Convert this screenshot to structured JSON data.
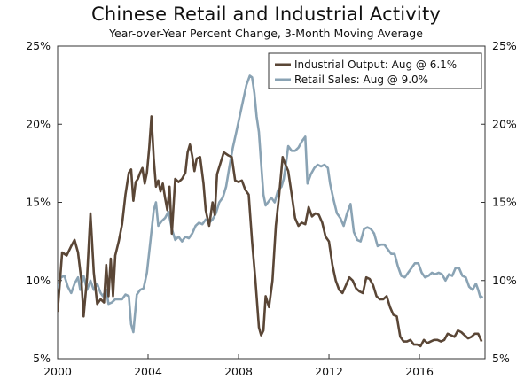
{
  "chart_data": {
    "type": "line",
    "title": "Chinese Retail and Industrial Activity",
    "subtitle": "Year-over-Year Percent Change, 3-Month Moving Average",
    "xlabel": "",
    "ylabel": "",
    "xlim": [
      2000.0,
      2018.9
    ],
    "ylim": [
      5,
      25
    ],
    "x_ticks": [
      "2000",
      "2004",
      "2008",
      "2012",
      "2016"
    ],
    "x_tick_values": [
      2000,
      2004,
      2008,
      2012,
      2016
    ],
    "y_ticks": [
      "5%",
      "10%",
      "15%",
      "20%",
      "25%"
    ],
    "y_tick_values": [
      5,
      10,
      15,
      20,
      25
    ],
    "y_axis_both_sides": true,
    "grid": false,
    "legend_position": "top-right",
    "series": [
      {
        "name": "Industrial Output: Aug @ 6.1%",
        "color": "#5a4636",
        "points": [
          [
            2000.0,
            8.0
          ],
          [
            2000.2,
            11.8
          ],
          [
            2000.4,
            11.6
          ],
          [
            2000.6,
            12.2
          ],
          [
            2000.75,
            12.6
          ],
          [
            2000.9,
            11.8
          ],
          [
            2001.05,
            10.0
          ],
          [
            2001.15,
            7.7
          ],
          [
            2001.3,
            10.2
          ],
          [
            2001.45,
            14.3
          ],
          [
            2001.6,
            10.5
          ],
          [
            2001.75,
            8.5
          ],
          [
            2001.9,
            8.8
          ],
          [
            2002.05,
            8.6
          ],
          [
            2002.15,
            11.0
          ],
          [
            2002.25,
            9.0
          ],
          [
            2002.35,
            11.4
          ],
          [
            2002.45,
            9.0
          ],
          [
            2002.55,
            11.6
          ],
          [
            2002.7,
            12.5
          ],
          [
            2002.85,
            13.6
          ],
          [
            2003.0,
            15.5
          ],
          [
            2003.15,
            16.9
          ],
          [
            2003.25,
            17.1
          ],
          [
            2003.35,
            15.1
          ],
          [
            2003.45,
            16.3
          ],
          [
            2003.55,
            16.5
          ],
          [
            2003.65,
            16.9
          ],
          [
            2003.75,
            17.2
          ],
          [
            2003.85,
            16.2
          ],
          [
            2003.95,
            16.9
          ],
          [
            2004.05,
            18.5
          ],
          [
            2004.15,
            20.5
          ],
          [
            2004.25,
            17.8
          ],
          [
            2004.35,
            16.0
          ],
          [
            2004.45,
            16.4
          ],
          [
            2004.55,
            15.7
          ],
          [
            2004.65,
            16.2
          ],
          [
            2004.75,
            15.3
          ],
          [
            2004.85,
            14.5
          ],
          [
            2004.95,
            16.0
          ],
          [
            2005.05,
            13.0
          ],
          [
            2005.2,
            16.5
          ],
          [
            2005.35,
            16.3
          ],
          [
            2005.5,
            16.5
          ],
          [
            2005.65,
            16.9
          ],
          [
            2005.75,
            18.2
          ],
          [
            2005.85,
            18.7
          ],
          [
            2005.95,
            18.0
          ],
          [
            2006.05,
            17.0
          ],
          [
            2006.15,
            17.8
          ],
          [
            2006.3,
            17.9
          ],
          [
            2006.45,
            16.2
          ],
          [
            2006.55,
            14.5
          ],
          [
            2006.7,
            13.5
          ],
          [
            2006.85,
            15.0
          ],
          [
            2006.95,
            14.2
          ],
          [
            2007.05,
            16.8
          ],
          [
            2007.2,
            17.5
          ],
          [
            2007.35,
            18.2
          ],
          [
            2007.55,
            18.0
          ],
          [
            2007.7,
            17.9
          ],
          [
            2007.85,
            16.4
          ],
          [
            2008.0,
            16.3
          ],
          [
            2008.15,
            16.4
          ],
          [
            2008.3,
            15.8
          ],
          [
            2008.45,
            15.5
          ],
          [
            2008.6,
            12.5
          ],
          [
            2008.75,
            10.0
          ],
          [
            2008.9,
            7.0
          ],
          [
            2009.0,
            6.5
          ],
          [
            2009.1,
            6.8
          ],
          [
            2009.2,
            9.0
          ],
          [
            2009.35,
            8.3
          ],
          [
            2009.5,
            10.0
          ],
          [
            2009.65,
            13.5
          ],
          [
            2009.8,
            15.5
          ],
          [
            2009.95,
            17.9
          ],
          [
            2010.05,
            17.5
          ],
          [
            2010.2,
            17.0
          ],
          [
            2010.35,
            15.5
          ],
          [
            2010.5,
            14.0
          ],
          [
            2010.65,
            13.5
          ],
          [
            2010.8,
            13.7
          ],
          [
            2010.95,
            13.6
          ],
          [
            2011.1,
            14.7
          ],
          [
            2011.25,
            14.1
          ],
          [
            2011.4,
            14.3
          ],
          [
            2011.55,
            14.2
          ],
          [
            2011.7,
            13.7
          ],
          [
            2011.85,
            12.8
          ],
          [
            2012.0,
            12.5
          ],
          [
            2012.15,
            11.0
          ],
          [
            2012.3,
            10.0
          ],
          [
            2012.45,
            9.4
          ],
          [
            2012.6,
            9.2
          ],
          [
            2012.75,
            9.7
          ],
          [
            2012.9,
            10.2
          ],
          [
            2013.05,
            10.0
          ],
          [
            2013.2,
            9.5
          ],
          [
            2013.35,
            9.3
          ],
          [
            2013.5,
            9.2
          ],
          [
            2013.65,
            10.2
          ],
          [
            2013.8,
            10.1
          ],
          [
            2013.95,
            9.7
          ],
          [
            2014.1,
            9.0
          ],
          [
            2014.25,
            8.8
          ],
          [
            2014.4,
            8.8
          ],
          [
            2014.55,
            9.0
          ],
          [
            2014.7,
            8.3
          ],
          [
            2014.85,
            7.8
          ],
          [
            2015.0,
            7.7
          ],
          [
            2015.15,
            6.4
          ],
          [
            2015.3,
            6.1
          ],
          [
            2015.45,
            6.1
          ],
          [
            2015.6,
            6.2
          ],
          [
            2015.75,
            5.9
          ],
          [
            2015.9,
            5.9
          ],
          [
            2016.05,
            5.8
          ],
          [
            2016.2,
            6.2
          ],
          [
            2016.35,
            6.0
          ],
          [
            2016.5,
            6.1
          ],
          [
            2016.65,
            6.2
          ],
          [
            2016.8,
            6.2
          ],
          [
            2016.95,
            6.1
          ],
          [
            2017.1,
            6.2
          ],
          [
            2017.25,
            6.6
          ],
          [
            2017.4,
            6.5
          ],
          [
            2017.55,
            6.4
          ],
          [
            2017.7,
            6.8
          ],
          [
            2017.85,
            6.7
          ],
          [
            2018.0,
            6.5
          ],
          [
            2018.15,
            6.3
          ],
          [
            2018.3,
            6.4
          ],
          [
            2018.45,
            6.6
          ],
          [
            2018.6,
            6.6
          ],
          [
            2018.75,
            6.1
          ]
        ]
      },
      {
        "name": "Retail Sales: Aug @ 9.0%",
        "color": "#8aa3b4",
        "points": [
          [
            2000.0,
            9.5
          ],
          [
            2000.15,
            10.2
          ],
          [
            2000.3,
            10.3
          ],
          [
            2000.45,
            9.6
          ],
          [
            2000.6,
            9.2
          ],
          [
            2000.75,
            9.8
          ],
          [
            2000.9,
            10.2
          ],
          [
            2001.0,
            9.4
          ],
          [
            2001.15,
            10.3
          ],
          [
            2001.3,
            9.4
          ],
          [
            2001.45,
            10.0
          ],
          [
            2001.6,
            9.4
          ],
          [
            2001.75,
            9.8
          ],
          [
            2001.9,
            9.2
          ],
          [
            2002.0,
            9.0
          ],
          [
            2002.15,
            9.4
          ],
          [
            2002.25,
            8.5
          ],
          [
            2002.4,
            8.6
          ],
          [
            2002.55,
            8.8
          ],
          [
            2002.7,
            8.8
          ],
          [
            2002.85,
            8.8
          ],
          [
            2003.0,
            9.1
          ],
          [
            2003.15,
            9.0
          ],
          [
            2003.25,
            7.2
          ],
          [
            2003.35,
            6.7
          ],
          [
            2003.5,
            9.1
          ],
          [
            2003.65,
            9.4
          ],
          [
            2003.8,
            9.5
          ],
          [
            2003.95,
            10.5
          ],
          [
            2004.1,
            12.5
          ],
          [
            2004.25,
            14.5
          ],
          [
            2004.35,
            15.0
          ],
          [
            2004.45,
            13.5
          ],
          [
            2004.6,
            13.8
          ],
          [
            2004.75,
            14.0
          ],
          [
            2004.9,
            14.4
          ],
          [
            2005.05,
            13.3
          ],
          [
            2005.2,
            12.6
          ],
          [
            2005.35,
            12.8
          ],
          [
            2005.5,
            12.5
          ],
          [
            2005.65,
            12.8
          ],
          [
            2005.8,
            12.7
          ],
          [
            2005.95,
            13.0
          ],
          [
            2006.1,
            13.5
          ],
          [
            2006.25,
            13.7
          ],
          [
            2006.4,
            13.6
          ],
          [
            2006.55,
            13.9
          ],
          [
            2006.7,
            13.7
          ],
          [
            2006.85,
            13.9
          ],
          [
            2007.0,
            14.3
          ],
          [
            2007.15,
            15.0
          ],
          [
            2007.3,
            15.3
          ],
          [
            2007.45,
            16.0
          ],
          [
            2007.6,
            17.3
          ],
          [
            2007.75,
            18.5
          ],
          [
            2007.9,
            19.5
          ],
          [
            2008.05,
            20.5
          ],
          [
            2008.2,
            21.5
          ],
          [
            2008.35,
            22.5
          ],
          [
            2008.5,
            23.1
          ],
          [
            2008.6,
            23.0
          ],
          [
            2008.7,
            22.0
          ],
          [
            2008.8,
            20.5
          ],
          [
            2008.9,
            19.5
          ],
          [
            2009.0,
            17.5
          ],
          [
            2009.1,
            15.5
          ],
          [
            2009.2,
            14.8
          ],
          [
            2009.3,
            15.0
          ],
          [
            2009.45,
            15.3
          ],
          [
            2009.6,
            15.0
          ],
          [
            2009.75,
            15.8
          ],
          [
            2009.9,
            16.0
          ],
          [
            2010.0,
            16.5
          ],
          [
            2010.1,
            17.5
          ],
          [
            2010.2,
            18.6
          ],
          [
            2010.35,
            18.3
          ],
          [
            2010.5,
            18.3
          ],
          [
            2010.65,
            18.5
          ],
          [
            2010.8,
            18.9
          ],
          [
            2010.95,
            19.2
          ],
          [
            2011.05,
            16.2
          ],
          [
            2011.2,
            16.8
          ],
          [
            2011.35,
            17.2
          ],
          [
            2011.5,
            17.4
          ],
          [
            2011.65,
            17.3
          ],
          [
            2011.8,
            17.4
          ],
          [
            2011.95,
            17.2
          ],
          [
            2012.05,
            16.2
          ],
          [
            2012.2,
            15.2
          ],
          [
            2012.35,
            14.3
          ],
          [
            2012.5,
            14.0
          ],
          [
            2012.65,
            13.5
          ],
          [
            2012.8,
            14.3
          ],
          [
            2012.95,
            14.9
          ],
          [
            2013.1,
            13.1
          ],
          [
            2013.25,
            12.6
          ],
          [
            2013.4,
            12.5
          ],
          [
            2013.55,
            13.3
          ],
          [
            2013.7,
            13.4
          ],
          [
            2013.85,
            13.3
          ],
          [
            2014.0,
            13.0
          ],
          [
            2014.15,
            12.2
          ],
          [
            2014.3,
            12.3
          ],
          [
            2014.45,
            12.3
          ],
          [
            2014.6,
            12.0
          ],
          [
            2014.75,
            11.7
          ],
          [
            2014.9,
            11.7
          ],
          [
            2015.05,
            10.9
          ],
          [
            2015.2,
            10.3
          ],
          [
            2015.35,
            10.2
          ],
          [
            2015.5,
            10.5
          ],
          [
            2015.65,
            10.8
          ],
          [
            2015.8,
            11.1
          ],
          [
            2015.95,
            11.1
          ],
          [
            2016.1,
            10.5
          ],
          [
            2016.25,
            10.2
          ],
          [
            2016.4,
            10.3
          ],
          [
            2016.55,
            10.5
          ],
          [
            2016.7,
            10.4
          ],
          [
            2016.85,
            10.5
          ],
          [
            2017.0,
            10.4
          ],
          [
            2017.15,
            10.0
          ],
          [
            2017.3,
            10.4
          ],
          [
            2017.45,
            10.3
          ],
          [
            2017.6,
            10.8
          ],
          [
            2017.75,
            10.8
          ],
          [
            2017.9,
            10.3
          ],
          [
            2018.05,
            10.2
          ],
          [
            2018.2,
            9.6
          ],
          [
            2018.35,
            9.4
          ],
          [
            2018.5,
            9.8
          ],
          [
            2018.6,
            9.4
          ],
          [
            2018.7,
            8.9
          ],
          [
            2018.8,
            9.0
          ]
        ]
      }
    ]
  }
}
